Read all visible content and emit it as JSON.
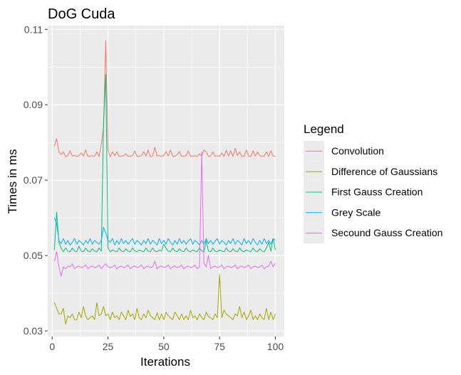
{
  "chart_data": {
    "type": "line",
    "title": "DoG Cuda",
    "xlabel": "Iterations",
    "ylabel": "Times in ms",
    "xlim": [
      -2,
      104
    ],
    "ylim": [
      0.0285,
      0.111
    ],
    "x_ticks": [
      0,
      25,
      50,
      75,
      100
    ],
    "x_tick_labels": [
      "0",
      "25",
      "50",
      "75",
      "100"
    ],
    "y_ticks": [
      0.03,
      0.05,
      0.07,
      0.09,
      0.11
    ],
    "y_tick_labels": [
      "0.03",
      "0.05",
      "0.07",
      "0.09",
      "0.11"
    ],
    "grid": true,
    "legend_title": "Legend",
    "legend_position": "right",
    "x": [
      1,
      2,
      3,
      4,
      5,
      6,
      7,
      8,
      9,
      10,
      11,
      12,
      13,
      14,
      15,
      16,
      17,
      18,
      19,
      20,
      21,
      22,
      23,
      24,
      25,
      26,
      27,
      28,
      29,
      30,
      31,
      32,
      33,
      34,
      35,
      36,
      37,
      38,
      39,
      40,
      41,
      42,
      43,
      44,
      45,
      46,
      47,
      48,
      49,
      50,
      51,
      52,
      53,
      54,
      55,
      56,
      57,
      58,
      59,
      60,
      61,
      62,
      63,
      64,
      65,
      66,
      67,
      68,
      69,
      70,
      71,
      72,
      73,
      74,
      75,
      76,
      77,
      78,
      79,
      80,
      81,
      82,
      83,
      84,
      85,
      86,
      87,
      88,
      89,
      90,
      91,
      92,
      93,
      94,
      95,
      96,
      97,
      98,
      99,
      100
    ],
    "series": [
      {
        "name": "Convolution",
        "color": "#F8766D",
        "values": [
          0.079,
          0.081,
          0.0775,
          0.0768,
          0.0775,
          0.0762,
          0.0765,
          0.0778,
          0.0764,
          0.0765,
          0.0763,
          0.0765,
          0.0772,
          0.0764,
          0.078,
          0.0763,
          0.0764,
          0.0765,
          0.0763,
          0.0775,
          0.0763,
          0.0795,
          0.084,
          0.107,
          0.078,
          0.0762,
          0.0775,
          0.0765,
          0.0775,
          0.0763,
          0.0764,
          0.0765,
          0.077,
          0.0763,
          0.0764,
          0.0765,
          0.0777,
          0.0764,
          0.0763,
          0.0765,
          0.0775,
          0.0764,
          0.078,
          0.0762,
          0.0764,
          0.0787,
          0.0764,
          0.0765,
          0.0763,
          0.0766,
          0.0776,
          0.0764,
          0.078,
          0.0763,
          0.0764,
          0.0768,
          0.0776,
          0.0763,
          0.0764,
          0.0765,
          0.0778,
          0.0763,
          0.0764,
          0.0765,
          0.0763,
          0.077,
          0.0764,
          0.078,
          0.0775,
          0.0763,
          0.0764,
          0.0775,
          0.0763,
          0.0765,
          0.0763,
          0.0772,
          0.0763,
          0.0779,
          0.0764,
          0.0778,
          0.0763,
          0.0785,
          0.0765,
          0.0775,
          0.0763,
          0.0764,
          0.078,
          0.0764,
          0.0763,
          0.0778,
          0.0764,
          0.0775,
          0.0765,
          0.0763,
          0.0764,
          0.0775,
          0.0763,
          0.0778,
          0.0764,
          0.0763
        ]
      },
      {
        "name": "Difference of Gaussians",
        "color": "#A3A500",
        "values": [
          0.0375,
          0.036,
          0.0345,
          0.0345,
          0.036,
          0.0318,
          0.034,
          0.0335,
          0.0345,
          0.033,
          0.033,
          0.035,
          0.0335,
          0.0365,
          0.034,
          0.033,
          0.0335,
          0.034,
          0.033,
          0.0375,
          0.034,
          0.0345,
          0.0365,
          0.034,
          0.0345,
          0.033,
          0.035,
          0.0335,
          0.034,
          0.033,
          0.035,
          0.034,
          0.033,
          0.0355,
          0.0338,
          0.0345,
          0.033,
          0.036,
          0.0335,
          0.033,
          0.0345,
          0.0335,
          0.0355,
          0.034,
          0.0335,
          0.033,
          0.0348,
          0.033,
          0.0345,
          0.033,
          0.035,
          0.034,
          0.0335,
          0.033,
          0.035,
          0.034,
          0.033,
          0.0345,
          0.033,
          0.034,
          0.033,
          0.0355,
          0.0335,
          0.034,
          0.033,
          0.0345,
          0.0335,
          0.033,
          0.035,
          0.0338,
          0.0335,
          0.033,
          0.0345,
          0.0335,
          0.045,
          0.0335,
          0.0355,
          0.0345,
          0.034,
          0.0335,
          0.033,
          0.0345,
          0.034,
          0.0365,
          0.0335,
          0.035,
          0.033,
          0.034,
          0.0355,
          0.033,
          0.034,
          0.033,
          0.0345,
          0.0335,
          0.033,
          0.036,
          0.033,
          0.035,
          0.033,
          0.0345
        ]
      },
      {
        "name": "First Gauss Creation",
        "color": "#00BF7D",
        "values": [
          0.0515,
          0.0615,
          0.0535,
          0.052,
          0.051,
          0.052,
          0.0512,
          0.051,
          0.052,
          0.0512,
          0.051,
          0.0525,
          0.0512,
          0.051,
          0.052,
          0.0512,
          0.051,
          0.0518,
          0.0512,
          0.051,
          0.052,
          0.0512,
          0.085,
          0.098,
          0.052,
          0.051,
          0.0515,
          0.0512,
          0.051,
          0.052,
          0.0512,
          0.051,
          0.0518,
          0.0512,
          0.051,
          0.052,
          0.0512,
          0.051,
          0.0515,
          0.0512,
          0.051,
          0.052,
          0.0512,
          0.051,
          0.052,
          0.0512,
          0.051,
          0.0515,
          0.0512,
          0.053,
          0.052,
          0.0512,
          0.051,
          0.052,
          0.0512,
          0.051,
          0.0518,
          0.0512,
          0.051,
          0.052,
          0.0512,
          0.051,
          0.0515,
          0.0512,
          0.051,
          0.052,
          0.0512,
          0.051,
          0.054,
          0.0512,
          0.051,
          0.052,
          0.0512,
          0.051,
          0.0515,
          0.0512,
          0.051,
          0.052,
          0.0512,
          0.051,
          0.0518,
          0.0512,
          0.051,
          0.052,
          0.0512,
          0.051,
          0.0515,
          0.0512,
          0.051,
          0.052,
          0.0512,
          0.051,
          0.0518,
          0.0512,
          0.051,
          0.052,
          0.0535,
          0.0512,
          0.0545,
          0.0515
        ]
      },
      {
        "name": "Grey Scale",
        "color": "#00B0F6",
        "values": [
          0.06,
          0.0585,
          0.054,
          0.0532,
          0.0545,
          0.053,
          0.054,
          0.0528,
          0.0535,
          0.0545,
          0.053,
          0.054,
          0.0535,
          0.0528,
          0.054,
          0.0532,
          0.0545,
          0.053,
          0.054,
          0.0535,
          0.053,
          0.054,
          0.0575,
          0.056,
          0.054,
          0.0535,
          0.0545,
          0.0528,
          0.054,
          0.053,
          0.0545,
          0.0532,
          0.054,
          0.053,
          0.0538,
          0.0545,
          0.053,
          0.054,
          0.0535,
          0.0528,
          0.054,
          0.0532,
          0.0545,
          0.053,
          0.054,
          0.0535,
          0.0528,
          0.0545,
          0.0532,
          0.054,
          0.053,
          0.0545,
          0.0535,
          0.0528,
          0.054,
          0.053,
          0.0545,
          0.0532,
          0.054,
          0.053,
          0.0538,
          0.0545,
          0.053,
          0.054,
          0.0535,
          0.0528,
          0.054,
          0.053,
          0.0545,
          0.0532,
          0.054,
          0.053,
          0.0538,
          0.0545,
          0.053,
          0.054,
          0.0535,
          0.0528,
          0.054,
          0.0532,
          0.0545,
          0.053,
          0.054,
          0.0535,
          0.0528,
          0.0545,
          0.0532,
          0.054,
          0.053,
          0.0545,
          0.0535,
          0.0528,
          0.054,
          0.053,
          0.0545,
          0.0532,
          0.054,
          0.053,
          0.0545,
          0.054
        ]
      },
      {
        "name": "Secound Gauss Creation",
        "color": "#E76BF3",
        "values": [
          0.0485,
          0.051,
          0.047,
          0.0445,
          0.047,
          0.0465,
          0.0472,
          0.047,
          0.0478,
          0.0465,
          0.047,
          0.0472,
          0.0468,
          0.047,
          0.0475,
          0.0465,
          0.047,
          0.0472,
          0.0468,
          0.047,
          0.0475,
          0.0465,
          0.0472,
          0.0478,
          0.047,
          0.0468,
          0.047,
          0.0475,
          0.0465,
          0.047,
          0.0472,
          0.0468,
          0.047,
          0.0475,
          0.0465,
          0.047,
          0.0472,
          0.0468,
          0.047,
          0.0475,
          0.0465,
          0.047,
          0.0472,
          0.0468,
          0.047,
          0.0485,
          0.0465,
          0.047,
          0.0472,
          0.0468,
          0.047,
          0.0475,
          0.0465,
          0.047,
          0.0472,
          0.0468,
          0.047,
          0.0475,
          0.0465,
          0.047,
          0.0472,
          0.0468,
          0.047,
          0.0475,
          0.0465,
          0.047,
          0.0775,
          0.048,
          0.047,
          0.05,
          0.0465,
          0.047,
          0.0472,
          0.0468,
          0.047,
          0.0475,
          0.0465,
          0.047,
          0.0472,
          0.0468,
          0.047,
          0.0475,
          0.0465,
          0.047,
          0.0472,
          0.0468,
          0.047,
          0.0475,
          0.0465,
          0.047,
          0.0472,
          0.0468,
          0.047,
          0.0475,
          0.0465,
          0.047,
          0.0472,
          0.0485,
          0.047,
          0.048
        ]
      }
    ]
  }
}
